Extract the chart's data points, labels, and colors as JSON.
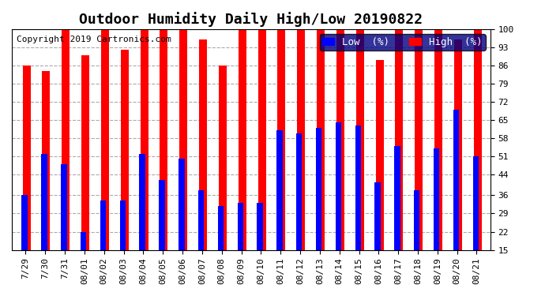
{
  "title": "Outdoor Humidity Daily High/Low 20190822",
  "copyright": "Copyright 2019 Cartronics.com",
  "dates": [
    "7/29",
    "7/30",
    "7/31",
    "08/01",
    "08/02",
    "08/03",
    "08/04",
    "08/05",
    "08/06",
    "08/07",
    "08/08",
    "08/09",
    "08/10",
    "08/11",
    "08/12",
    "08/13",
    "08/14",
    "08/15",
    "08/16",
    "08/17",
    "08/18",
    "08/19",
    "08/20",
    "08/21"
  ],
  "high": [
    86,
    84,
    100,
    90,
    100,
    92,
    100,
    100,
    100,
    96,
    86,
    100,
    100,
    100,
    100,
    100,
    100,
    100,
    88,
    100,
    100,
    100,
    96,
    100
  ],
  "low": [
    36,
    52,
    48,
    22,
    34,
    34,
    52,
    42,
    50,
    38,
    32,
    33,
    33,
    61,
    60,
    62,
    64,
    63,
    41,
    55,
    38,
    54,
    69,
    51
  ],
  "high_color": "#ff0000",
  "low_color": "#0000ff",
  "bg_color": "#ffffff",
  "grid_color": "#aaaaaa",
  "ylim_min": 15,
  "ylim_max": 100,
  "yticks": [
    15,
    22,
    29,
    36,
    44,
    51,
    58,
    65,
    72,
    79,
    86,
    93,
    100
  ],
  "title_fontsize": 13,
  "copyright_fontsize": 8,
  "legend_fontsize": 9,
  "tick_fontsize": 8,
  "legend_low_label": "Low  (%)",
  "legend_high_label": "High  (%)"
}
